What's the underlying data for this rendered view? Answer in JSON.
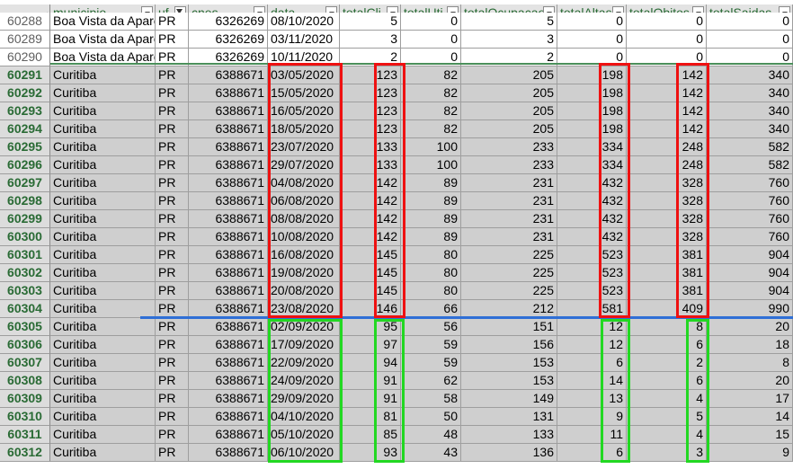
{
  "header": {
    "columns": [
      "municipio",
      "uf",
      "cnes",
      "data",
      "totalCli",
      "totalUti",
      "totalOcupacao",
      "totalAltas",
      "totalObitos",
      "totalSaidas"
    ],
    "filter_active_column": "uf"
  },
  "rows": [
    {
      "rownum": "60288",
      "cells": [
        "Boa Vista da Apare",
        "PR",
        "6326269",
        "08/10/2020",
        "5",
        "0",
        "5",
        "0",
        "0",
        "0"
      ],
      "selected": false
    },
    {
      "rownum": "60289",
      "cells": [
        "Boa Vista da Apare",
        "PR",
        "6326269",
        "03/11/2020",
        "3",
        "0",
        "3",
        "0",
        "0",
        "0"
      ],
      "selected": false
    },
    {
      "rownum": "60290",
      "cells": [
        "Boa Vista da Apare",
        "PR",
        "6326269",
        "10/11/2020",
        "2",
        "0",
        "2",
        "0",
        "0",
        "0"
      ],
      "selected": false
    },
    {
      "rownum": "60291",
      "cells": [
        "Curitiba",
        "PR",
        "6388671",
        "03/05/2020",
        "123",
        "82",
        "205",
        "198",
        "142",
        "340"
      ],
      "selected": true
    },
    {
      "rownum": "60292",
      "cells": [
        "Curitiba",
        "PR",
        "6388671",
        "15/05/2020",
        "123",
        "82",
        "205",
        "198",
        "142",
        "340"
      ],
      "selected": true
    },
    {
      "rownum": "60293",
      "cells": [
        "Curitiba",
        "PR",
        "6388671",
        "16/05/2020",
        "123",
        "82",
        "205",
        "198",
        "142",
        "340"
      ],
      "selected": true
    },
    {
      "rownum": "60294",
      "cells": [
        "Curitiba",
        "PR",
        "6388671",
        "18/05/2020",
        "123",
        "82",
        "205",
        "198",
        "142",
        "340"
      ],
      "selected": true
    },
    {
      "rownum": "60295",
      "cells": [
        "Curitiba",
        "PR",
        "6388671",
        "23/07/2020",
        "133",
        "100",
        "233",
        "334",
        "248",
        "582"
      ],
      "selected": true
    },
    {
      "rownum": "60296",
      "cells": [
        "Curitiba",
        "PR",
        "6388671",
        "29/07/2020",
        "133",
        "100",
        "233",
        "334",
        "248",
        "582"
      ],
      "selected": true
    },
    {
      "rownum": "60297",
      "cells": [
        "Curitiba",
        "PR",
        "6388671",
        "04/08/2020",
        "142",
        "89",
        "231",
        "432",
        "328",
        "760"
      ],
      "selected": true
    },
    {
      "rownum": "60298",
      "cells": [
        "Curitiba",
        "PR",
        "6388671",
        "06/08/2020",
        "142",
        "89",
        "231",
        "432",
        "328",
        "760"
      ],
      "selected": true
    },
    {
      "rownum": "60299",
      "cells": [
        "Curitiba",
        "PR",
        "6388671",
        "08/08/2020",
        "142",
        "89",
        "231",
        "432",
        "328",
        "760"
      ],
      "selected": true
    },
    {
      "rownum": "60300",
      "cells": [
        "Curitiba",
        "PR",
        "6388671",
        "10/08/2020",
        "142",
        "89",
        "231",
        "432",
        "328",
        "760"
      ],
      "selected": true
    },
    {
      "rownum": "60301",
      "cells": [
        "Curitiba",
        "PR",
        "6388671",
        "16/08/2020",
        "145",
        "80",
        "225",
        "523",
        "381",
        "904"
      ],
      "selected": true
    },
    {
      "rownum": "60302",
      "cells": [
        "Curitiba",
        "PR",
        "6388671",
        "19/08/2020",
        "145",
        "80",
        "225",
        "523",
        "381",
        "904"
      ],
      "selected": true
    },
    {
      "rownum": "60303",
      "cells": [
        "Curitiba",
        "PR",
        "6388671",
        "20/08/2020",
        "145",
        "80",
        "225",
        "523",
        "381",
        "904"
      ],
      "selected": true
    },
    {
      "rownum": "60304",
      "cells": [
        "Curitiba",
        "PR",
        "6388671",
        "23/08/2020",
        "146",
        "66",
        "212",
        "581",
        "409",
        "990"
      ],
      "selected": true
    },
    {
      "rownum": "60305",
      "cells": [
        "Curitiba",
        "PR",
        "6388671",
        "02/09/2020",
        "95",
        "56",
        "151",
        "12",
        "8",
        "20"
      ],
      "selected": true
    },
    {
      "rownum": "60306",
      "cells": [
        "Curitiba",
        "PR",
        "6388671",
        "17/09/2020",
        "97",
        "59",
        "156",
        "12",
        "6",
        "18"
      ],
      "selected": true
    },
    {
      "rownum": "60307",
      "cells": [
        "Curitiba",
        "PR",
        "6388671",
        "22/09/2020",
        "94",
        "59",
        "153",
        "6",
        "2",
        "8"
      ],
      "selected": true
    },
    {
      "rownum": "60308",
      "cells": [
        "Curitiba",
        "PR",
        "6388671",
        "24/09/2020",
        "91",
        "62",
        "153",
        "14",
        "6",
        "20"
      ],
      "selected": true
    },
    {
      "rownum": "60309",
      "cells": [
        "Curitiba",
        "PR",
        "6388671",
        "29/09/2020",
        "91",
        "58",
        "149",
        "13",
        "4",
        "17"
      ],
      "selected": true
    },
    {
      "rownum": "60310",
      "cells": [
        "Curitiba",
        "PR",
        "6388671",
        "04/10/2020",
        "81",
        "50",
        "131",
        "9",
        "5",
        "14"
      ],
      "selected": true
    },
    {
      "rownum": "60311",
      "cells": [
        "Curitiba",
        "PR",
        "6388671",
        "05/10/2020",
        "85",
        "48",
        "133",
        "11",
        "4",
        "15"
      ],
      "selected": true
    },
    {
      "rownum": "60312",
      "cells": [
        "Curitiba",
        "PR",
        "6388671",
        "06/10/2020",
        "93",
        "43",
        "136",
        "6",
        "3",
        "9"
      ],
      "selected": true
    }
  ],
  "highlights": {
    "red_color": "#ee1111",
    "green_color": "#22d822",
    "separator_color": "#2f6fd6"
  }
}
